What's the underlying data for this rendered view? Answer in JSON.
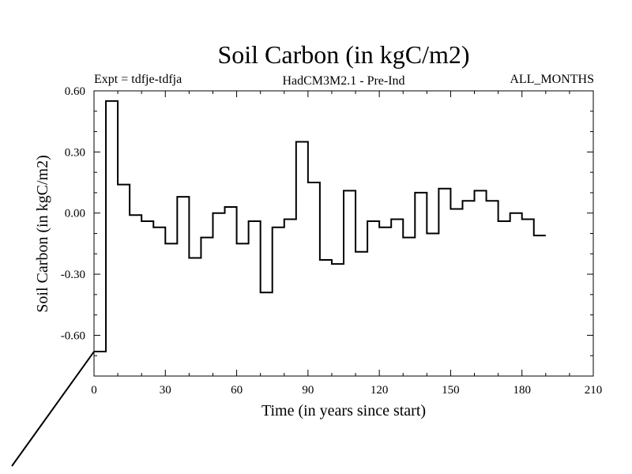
{
  "chart_data": {
    "type": "line",
    "title": "Soil Carbon (in kgC/m2)",
    "subtitle_left": "Expt = tdfje-tdfja",
    "subtitle_center": "HadCM3M2.1 - Pre-Ind",
    "subtitle_right": "ALL_MONTHS",
    "xlabel": "Time (in years since start)",
    "ylabel": "Soil Carbon (in kgC/m2)",
    "xlim": [
      0,
      210
    ],
    "ylim": [
      -0.8,
      0.6
    ],
    "xticks": [
      0,
      30,
      60,
      90,
      120,
      150,
      180,
      210
    ],
    "xtick_labels": [
      "0",
      "30",
      "60",
      "90",
      "120",
      "150",
      "180",
      "210"
    ],
    "yticks": [
      -0.6,
      -0.3,
      0.0,
      0.3,
      0.6
    ],
    "ytick_labels": [
      "-0.60",
      "-0.30",
      "0.00",
      "0.30",
      "0.60"
    ],
    "grid": false,
    "series": [
      {
        "x": [
          0,
          5,
          5,
          10,
          10,
          15,
          15,
          20,
          20,
          25,
          25,
          30,
          30,
          35,
          35,
          40,
          40,
          45,
          45,
          50,
          50,
          55,
          55,
          60,
          60,
          65,
          65,
          70,
          70,
          75,
          75,
          80,
          80,
          85,
          85,
          90,
          90,
          95,
          95,
          100,
          100,
          105,
          105,
          110,
          110,
          115,
          115,
          120,
          120,
          125,
          125,
          130,
          130,
          135,
          135,
          140,
          140,
          145,
          145,
          150,
          150,
          155,
          155,
          160,
          160,
          165,
          165,
          170,
          170,
          175,
          175,
          180,
          180,
          185,
          185,
          190
        ],
        "y": [
          -0.68,
          -0.68,
          0.55,
          0.55,
          0.14,
          0.14,
          -0.01,
          -0.01,
          -0.04,
          -0.04,
          -0.07,
          -0.07,
          -0.15,
          -0.15,
          0.08,
          0.08,
          -0.22,
          -0.22,
          -0.12,
          -0.12,
          0.0,
          0.0,
          0.03,
          0.03,
          -0.15,
          -0.15,
          -0.04,
          -0.04,
          -0.39,
          -0.39,
          -0.07,
          -0.07,
          -0.03,
          -0.03,
          0.35,
          0.35,
          0.15,
          0.15,
          -0.23,
          -0.23,
          -0.25,
          -0.25,
          0.11,
          0.11,
          -0.19,
          -0.19,
          -0.04,
          -0.04,
          -0.07,
          -0.07,
          -0.03,
          -0.03,
          -0.12,
          -0.12,
          0.1,
          0.1,
          -0.1,
          -0.1,
          0.12,
          0.12,
          0.02,
          0.02,
          0.06,
          0.06,
          0.11,
          0.11,
          0.06,
          0.06,
          -0.04,
          -0.04,
          0.0,
          0.0,
          -0.03,
          -0.03,
          -0.11,
          -0.11
        ]
      }
    ]
  }
}
